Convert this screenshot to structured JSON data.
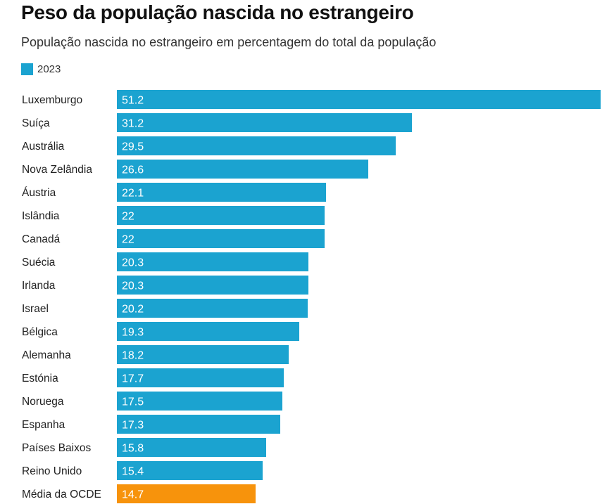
{
  "chart_data": {
    "type": "bar",
    "orientation": "horizontal",
    "title": "Peso da população nascida no estrangeiro",
    "subtitle": "População nascida no estrangeiro em percentagem do total da população",
    "legend": [
      {
        "name": "2023",
        "color": "#1ba3d0"
      }
    ],
    "categories": [
      "Luxemburgo",
      "Suíça",
      "Austrália",
      "Nova Zelândia",
      "Áustria",
      "Islândia",
      "Canadá",
      "Suécia",
      "Irlanda",
      "Israel",
      "Bélgica",
      "Alemanha",
      "Estónia",
      "Noruega",
      "Espanha",
      "Países Baixos",
      "Reino Unido",
      "Média da OCDE"
    ],
    "value_labels": [
      "51.2",
      "31.2",
      "29.5",
      "26.6",
      "22.1",
      "22",
      "22",
      "20.3",
      "20.3",
      "20.2",
      "19.3",
      "18.2",
      "17.7",
      "17.5",
      "17.3",
      "15.8",
      "15.4",
      "14.7"
    ],
    "series": [
      {
        "name": "2023",
        "values": [
          51.2,
          31.2,
          29.5,
          26.6,
          22.1,
          22,
          22,
          20.3,
          20.3,
          20.2,
          19.3,
          18.2,
          17.7,
          17.5,
          17.3,
          15.8,
          15.4,
          14.7
        ]
      }
    ],
    "bar_color": "#1ba3d0",
    "highlight_color": "#f7930c",
    "highlight_index": 17,
    "xlim": [
      0,
      51.2
    ]
  }
}
